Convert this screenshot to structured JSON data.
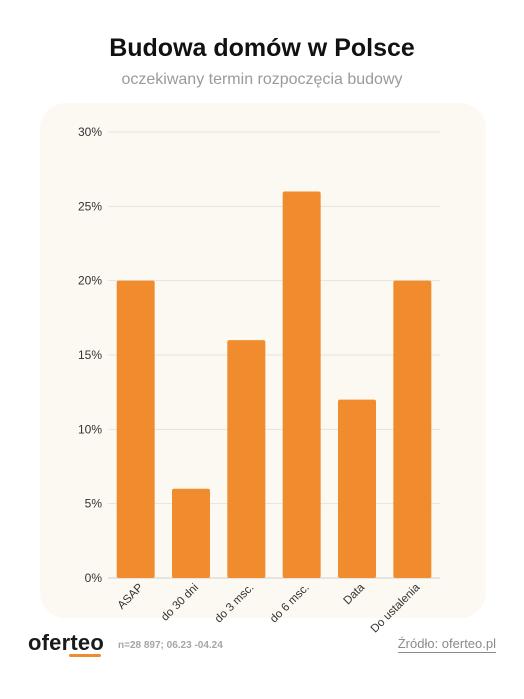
{
  "header": {
    "title": "Budowa domów w Polsce",
    "subtitle": "oczekiwany termin rozpoczęcia budowy"
  },
  "chart_data": {
    "type": "bar",
    "categories": [
      "ASAP",
      "do 30 dni",
      "do 3 msc.",
      "do 6 msc.",
      "Data",
      "Do ustalenia"
    ],
    "values": [
      20,
      6,
      16,
      26,
      12,
      20
    ],
    "ylim": [
      0,
      30
    ],
    "yticks": [
      0,
      5,
      10,
      15,
      20,
      25,
      30
    ],
    "ytick_labels": [
      "0%",
      "5%",
      "10%",
      "15%",
      "20%",
      "25%",
      "30%"
    ],
    "grid": true,
    "bar_color": "#f08c2e",
    "xlabel": "",
    "ylabel": ""
  },
  "footer": {
    "logo": "oferteo",
    "note": "n=28 897; 06.23 -04.24",
    "source": "Źródło: oferteo.pl"
  },
  "colors": {
    "accent": "#f08c2e",
    "panel_background": "#fcf8f2"
  }
}
